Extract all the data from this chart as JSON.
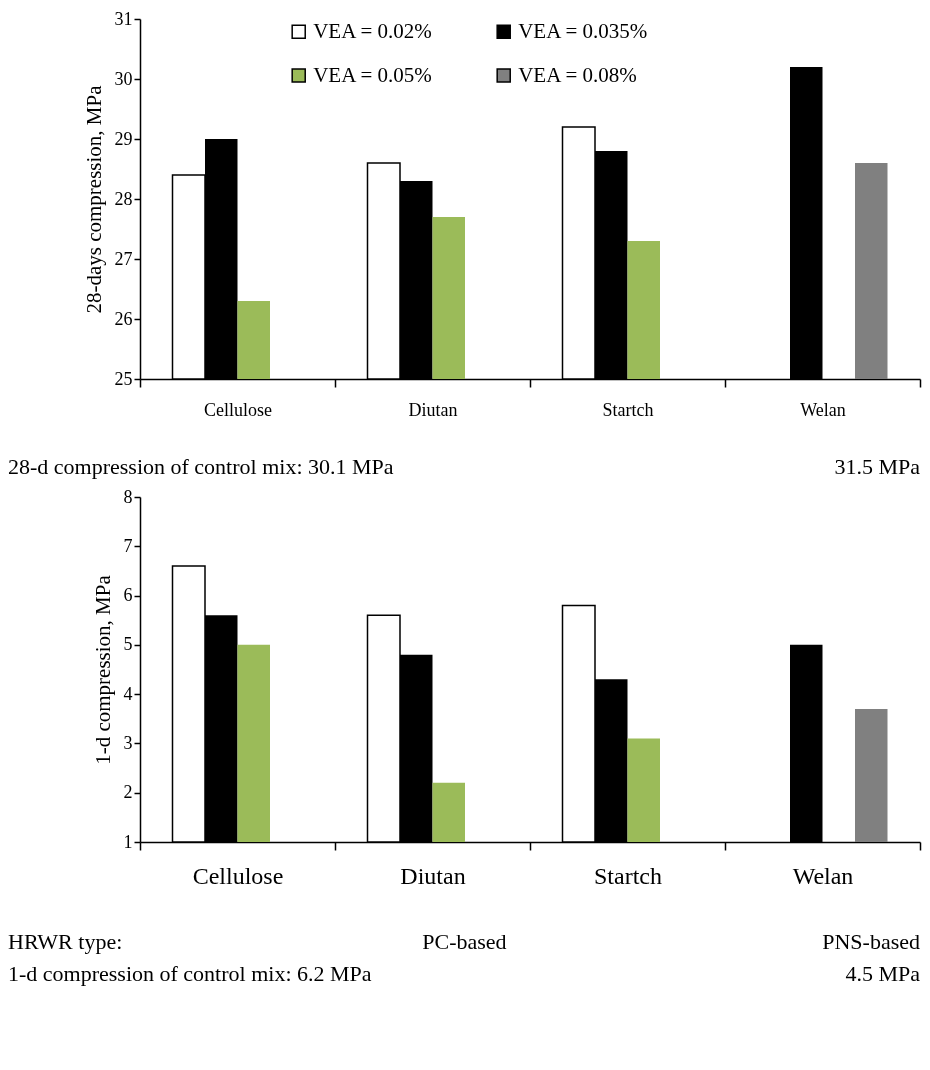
{
  "chart_data": [
    {
      "type": "bar",
      "ylabel": "28-days compression, MPa",
      "categories": [
        "Cellulose",
        "Diutan",
        "Startch",
        "Welan"
      ],
      "series": [
        {
          "name": "VEA = 0.02%",
          "color": "#ffffff",
          "values": [
            28.4,
            28.6,
            29.2,
            null
          ]
        },
        {
          "name": "VEA = 0.035%",
          "color": "#000000",
          "values": [
            29.0,
            28.3,
            28.8,
            30.2
          ]
        },
        {
          "name": "VEA = 0.05%",
          "color": "#9bbb59",
          "values": [
            26.3,
            27.7,
            27.3,
            null
          ]
        },
        {
          "name": "VEA = 0.08%",
          "color": "#808080",
          "values": [
            null,
            null,
            null,
            28.6
          ]
        }
      ],
      "ylim": [
        25,
        31
      ],
      "yticks": [
        25,
        26,
        27,
        28,
        29,
        30,
        31
      ],
      "legend": "top",
      "grid": false,
      "annotations": [
        "28-d compression of control mix:   30.1 MPa",
        "31.5 MPa"
      ]
    },
    {
      "type": "bar",
      "ylabel": "1-d compression, MPa",
      "categories": [
        "Cellulose",
        "Diutan",
        "Startch",
        "Welan"
      ],
      "series": [
        {
          "name": "VEA = 0.02%",
          "color": "#ffffff",
          "values": [
            6.6,
            5.6,
            5.8,
            null
          ]
        },
        {
          "name": "VEA = 0.035%",
          "color": "#000000",
          "values": [
            5.6,
            4.8,
            4.3,
            5.0
          ]
        },
        {
          "name": "VEA = 0.05%",
          "color": "#9bbb59",
          "values": [
            5.0,
            2.2,
            3.1,
            null
          ]
        },
        {
          "name": "VEA = 0.08%",
          "color": "#808080",
          "values": [
            null,
            null,
            null,
            3.7
          ]
        }
      ],
      "ylim": [
        1,
        8
      ],
      "yticks": [
        1,
        2,
        3,
        4,
        5,
        6,
        7,
        8
      ],
      "legend": false,
      "grid": false,
      "annotations": [
        "HRWR type:",
        "PC-based",
        "PNS-based",
        "1-d compression of control mix:  6.2 MPa",
        "4.5 MPa"
      ]
    }
  ]
}
